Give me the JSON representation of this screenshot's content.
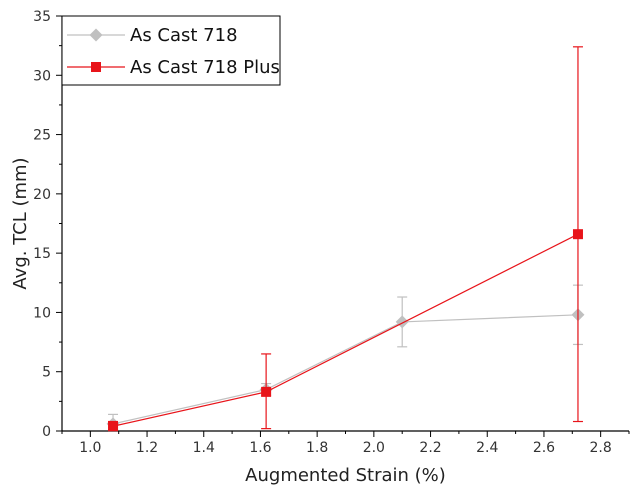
{
  "chart_data": {
    "type": "scatter",
    "title": "",
    "xlabel": "Augmented Strain (%)",
    "ylabel": "Avg. TCL (mm)",
    "xlim": [
      0.9,
      2.9
    ],
    "ylim": [
      0,
      35
    ],
    "x_ticks": [
      "1.0",
      "1.2",
      "1.4",
      "1.6",
      "1.8",
      "2.0",
      "2.2",
      "2.4",
      "2.6",
      "2.8"
    ],
    "y_ticks": [
      "0",
      "5",
      "10",
      "15",
      "20",
      "25",
      "30",
      "35"
    ],
    "grid": false,
    "legend_position": "top-left",
    "series": [
      {
        "name": "As Cast 718",
        "color": "#c0c0c0",
        "marker": "diamond",
        "points": [
          {
            "x": 1.08,
            "y": 0.6,
            "err_low": 0.3,
            "err_high": 1.4
          },
          {
            "x": 1.62,
            "y": 3.5,
            "err_low": 3.0,
            "err_high": 4.0
          },
          {
            "x": 2.1,
            "y": 9.2,
            "err_low": 7.1,
            "err_high": 11.3
          },
          {
            "x": 2.72,
            "y": 9.8,
            "err_low": 7.3,
            "err_high": 12.3
          }
        ]
      },
      {
        "name": "As Cast 718 Plus",
        "color": "#e8141a",
        "marker": "square",
        "points": [
          {
            "x": 1.08,
            "y": 0.4,
            "err_low": 0.1,
            "err_high": 0.8
          },
          {
            "x": 1.62,
            "y": 3.3,
            "err_low": 0.2,
            "err_high": 6.5
          },
          {
            "x": 2.72,
            "y": 16.6,
            "err_low": 0.8,
            "err_high": 32.4
          }
        ]
      }
    ]
  }
}
